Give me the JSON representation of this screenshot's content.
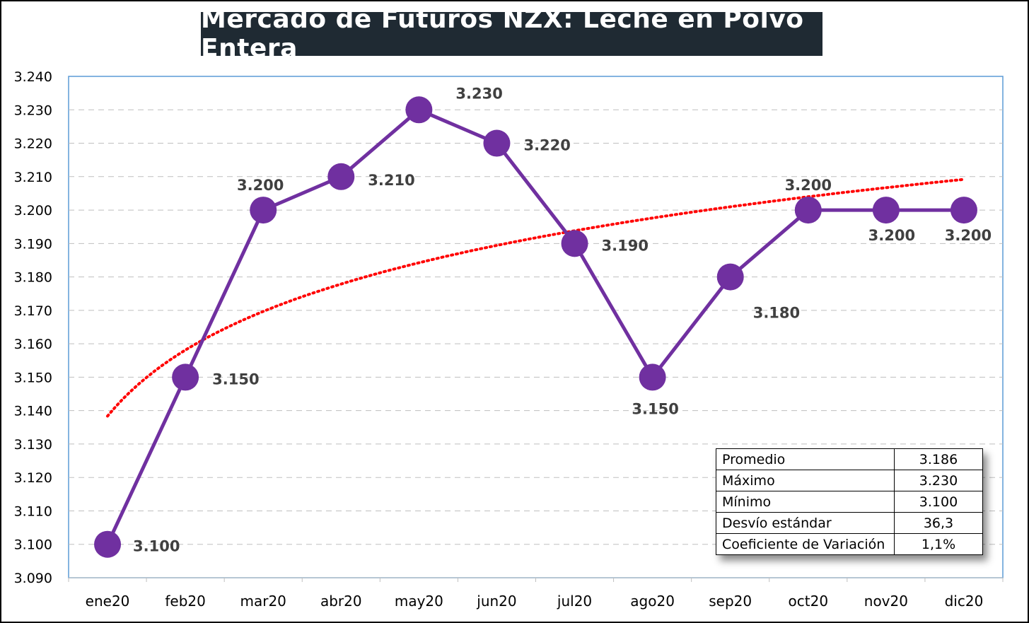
{
  "title": "Mercado de Futuros NZX: Leche en Polvo Entera",
  "chart_data": {
    "type": "line",
    "title": "Mercado de Futuros NZX: Leche en Polvo Entera",
    "categories": [
      "ene20",
      "feb20",
      "mar20",
      "abr20",
      "may20",
      "jun20",
      "jul20",
      "ago20",
      "sep20",
      "oct20",
      "nov20",
      "dic20"
    ],
    "series": [
      {
        "values": [
          3100,
          3150,
          3200,
          3210,
          3230,
          3220,
          3190,
          3150,
          3180,
          3200,
          3200,
          3200
        ],
        "color": "#7030a0"
      }
    ],
    "data_labels": [
      "3.100",
      "3.150",
      "3.200",
      "3.210",
      "3.230",
      "3.220",
      "3.190",
      "3.150",
      "3.180",
      "3.200",
      "3.200",
      "3.200"
    ],
    "trendline": {
      "type": "logarithmic",
      "color": "#ff0000",
      "style": "dotted"
    },
    "ylim": [
      3090,
      3240
    ],
    "yticks": [
      "3.090",
      "3.100",
      "3.110",
      "3.120",
      "3.130",
      "3.140",
      "3.150",
      "3.160",
      "3.170",
      "3.180",
      "3.190",
      "3.200",
      "3.210",
      "3.220",
      "3.230",
      "3.240"
    ],
    "grid": "horizontal dashed",
    "xlabel": "",
    "ylabel": ""
  },
  "stats_table": [
    {
      "label": "Promedio",
      "value": "3.186"
    },
    {
      "label": "Máximo",
      "value": "3.230"
    },
    {
      "label": "Mínimo",
      "value": "3.100"
    },
    {
      "label": "Desvío estándar",
      "value": "36,3"
    },
    {
      "label": "Coeficiente de Variación",
      "value": "1,1%"
    }
  ]
}
